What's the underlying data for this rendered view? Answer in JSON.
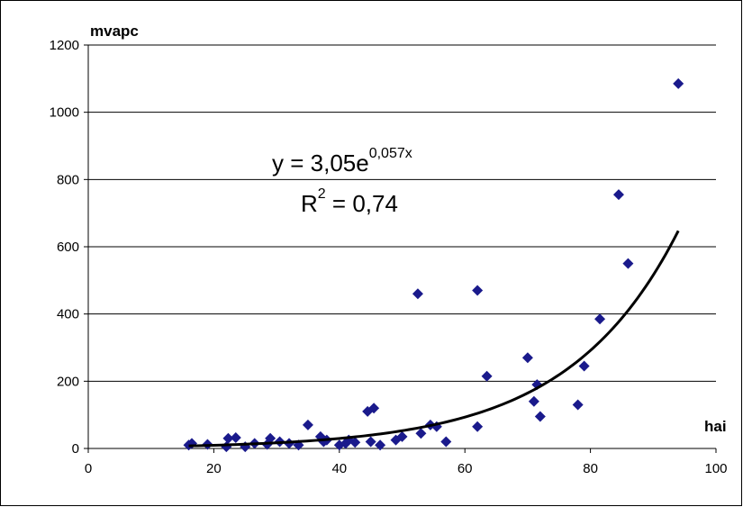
{
  "chart_data": {
    "type": "scatter",
    "ylabel": "mvapc",
    "xlabel": "hai",
    "xlim": [
      0,
      100
    ],
    "ylim": [
      0,
      1200
    ],
    "x_ticks": [
      0,
      20,
      40,
      60,
      80,
      100
    ],
    "y_ticks": [
      0,
      200,
      400,
      600,
      800,
      1000,
      1200
    ],
    "grid": "horizontal",
    "marker_color": "#1a1a8c",
    "trend_color": "#000000",
    "trendline": {
      "type": "exponential",
      "a": 3.05,
      "b": 0.057,
      "x_range": [
        16,
        94
      ],
      "equation_base": "y = 3,05e",
      "equation_exponent": "0,057x",
      "r2_base": "R",
      "r2_exponent": "2",
      "r2_value": " = 0,74"
    },
    "points": [
      {
        "x": 16,
        "y": 10
      },
      {
        "x": 16.5,
        "y": 15
      },
      {
        "x": 19,
        "y": 12
      },
      {
        "x": 22,
        "y": 5
      },
      {
        "x": 22.3,
        "y": 30
      },
      {
        "x": 23.5,
        "y": 32
      },
      {
        "x": 25,
        "y": 5
      },
      {
        "x": 26.5,
        "y": 15
      },
      {
        "x": 28.5,
        "y": 12
      },
      {
        "x": 29,
        "y": 30
      },
      {
        "x": 30.5,
        "y": 20
      },
      {
        "x": 32,
        "y": 15
      },
      {
        "x": 33.5,
        "y": 10
      },
      {
        "x": 35,
        "y": 70
      },
      {
        "x": 37,
        "y": 35
      },
      {
        "x": 37.5,
        "y": 20
      },
      {
        "x": 38,
        "y": 25
      },
      {
        "x": 40,
        "y": 10
      },
      {
        "x": 41,
        "y": 15
      },
      {
        "x": 41.5,
        "y": 25
      },
      {
        "x": 42.5,
        "y": 18
      },
      {
        "x": 44.5,
        "y": 110
      },
      {
        "x": 45.5,
        "y": 120
      },
      {
        "x": 45,
        "y": 20
      },
      {
        "x": 46.5,
        "y": 10
      },
      {
        "x": 49,
        "y": 25
      },
      {
        "x": 50,
        "y": 35
      },
      {
        "x": 52.5,
        "y": 460
      },
      {
        "x": 53,
        "y": 45
      },
      {
        "x": 54.5,
        "y": 70
      },
      {
        "x": 55.5,
        "y": 65
      },
      {
        "x": 57,
        "y": 20
      },
      {
        "x": 62,
        "y": 470
      },
      {
        "x": 62,
        "y": 65
      },
      {
        "x": 63.5,
        "y": 215
      },
      {
        "x": 70,
        "y": 270
      },
      {
        "x": 71,
        "y": 140
      },
      {
        "x": 71.5,
        "y": 190
      },
      {
        "x": 72,
        "y": 95
      },
      {
        "x": 78,
        "y": 130
      },
      {
        "x": 79,
        "y": 245
      },
      {
        "x": 81.5,
        "y": 385
      },
      {
        "x": 84.5,
        "y": 755
      },
      {
        "x": 86,
        "y": 550
      },
      {
        "x": 94,
        "y": 1085
      }
    ]
  }
}
